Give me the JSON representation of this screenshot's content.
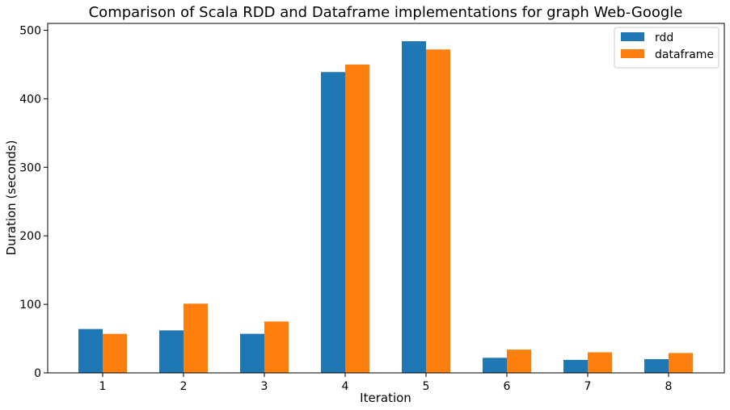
{
  "chart_data": {
    "type": "bar",
    "title": "Comparison of Scala RDD and Dataframe implementations for graph Web-Google",
    "xlabel": "Iteration",
    "ylabel": "Duration (seconds)",
    "categories": [
      "1",
      "2",
      "3",
      "4",
      "5",
      "6",
      "7",
      "8"
    ],
    "series": [
      {
        "name": "rdd",
        "color": "#1f77b4",
        "values": [
          64,
          62,
          57,
          439,
          484,
          22,
          19,
          20
        ]
      },
      {
        "name": "dataframe",
        "color": "#ff7f0e",
        "values": [
          57,
          101,
          75,
          450,
          472,
          34,
          30,
          29
        ]
      }
    ],
    "ylim": [
      0,
      510
    ],
    "yticks": [
      0,
      100,
      200,
      300,
      400,
      500
    ],
    "grid": false,
    "legend_position": "top-right"
  }
}
